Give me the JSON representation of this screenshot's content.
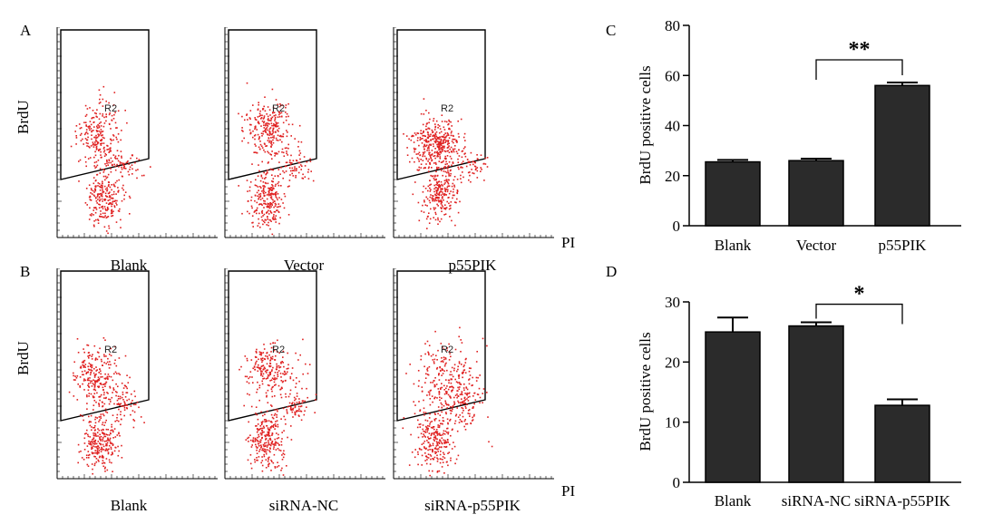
{
  "panel_labels": {
    "a": "A",
    "b": "B",
    "c": "C",
    "d": "D"
  },
  "flow": {
    "y_axis_label": "BrdU",
    "x_axis_label": "PI",
    "gate_label": "R2",
    "dot_color": "#e02020",
    "row_a": [
      "Blank",
      "Vector",
      "p55PIK"
    ],
    "row_b": [
      "Blank",
      "siRNA-NC",
      "siRNA-p55PIK"
    ]
  },
  "chart_data": [
    {
      "panel": "C",
      "type": "bar",
      "categories": [
        "Blank",
        "Vector",
        "p55PIK"
      ],
      "values": [
        25.5,
        26,
        56
      ],
      "errors": [
        0.8,
        0.8,
        1.2
      ],
      "ylim": [
        0,
        80
      ],
      "yticks": [
        0,
        20,
        40,
        60,
        80
      ],
      "ylabel": "BrdU positive cells",
      "xlabel": "",
      "bar_color": "#2b2b2b",
      "significance": {
        "from": 1,
        "to": 2,
        "label": "**"
      }
    },
    {
      "panel": "D",
      "type": "bar",
      "categories": [
        "Blank",
        "siRNA-NC",
        "siRNA-p55PIK"
      ],
      "values": [
        25,
        26,
        12.8
      ],
      "errors": [
        2.4,
        0.6,
        1.0
      ],
      "ylim": [
        0,
        30
      ],
      "yticks": [
        0,
        10,
        20,
        30
      ],
      "ylabel": "BrdU positive cells",
      "xlabel": "",
      "bar_color": "#2b2b2b",
      "significance": {
        "from": 1,
        "to": 2,
        "label": "*"
      }
    }
  ]
}
